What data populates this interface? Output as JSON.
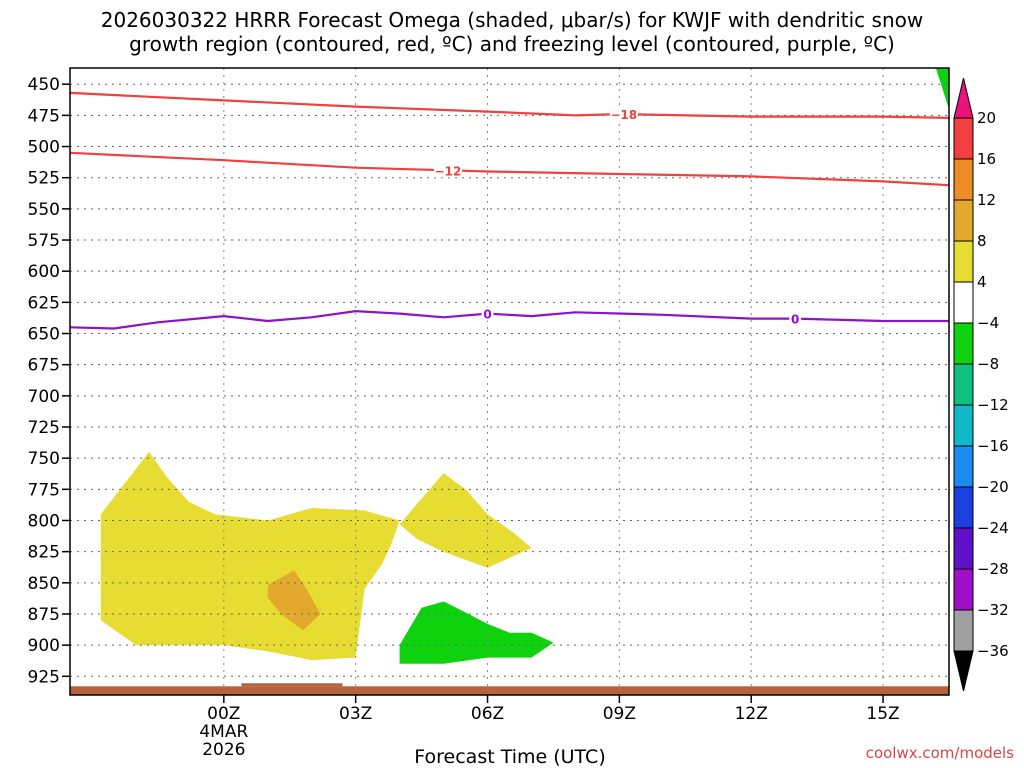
{
  "chart_data": {
    "type": "heatmap",
    "title_line1": "2026030322 HRRR Forecast Omega (shaded, μbar/s) for KWJF with dendritic snow",
    "title_line2": "growth region (contoured, red, ºC) and freezing level (contoured, purple, ºC)",
    "xlabel": "Forecast Time (UTC)",
    "credit": "coolwx.com/models",
    "xlim": [
      -3.5,
      16.5
    ],
    "ylim": [
      940,
      437
    ],
    "x_ticks": [
      {
        "value": 0,
        "label": "00Z",
        "sub1": "4MAR",
        "sub2": "2026"
      },
      {
        "value": 3,
        "label": "03Z"
      },
      {
        "value": 6,
        "label": "06Z"
      },
      {
        "value": 9,
        "label": "09Z"
      },
      {
        "value": 12,
        "label": "12Z"
      },
      {
        "value": 15,
        "label": "15Z"
      }
    ],
    "y_ticks": [
      450,
      475,
      500,
      525,
      550,
      575,
      600,
      625,
      650,
      675,
      700,
      725,
      750,
      775,
      800,
      825,
      850,
      875,
      900,
      925
    ],
    "colorbar": {
      "levels": [
        20,
        16,
        12,
        8,
        4,
        -4,
        -8,
        -12,
        -16,
        -20,
        -24,
        -28,
        -32,
        -36
      ],
      "colors": [
        "#e8137c",
        "#f04040",
        "#f08c28",
        "#e3a92d",
        "#e6dc32",
        "#ffffff",
        "#0ed20e",
        "#10c080",
        "#10b8c8",
        "#1a8cf0",
        "#1a40e0",
        "#6010c8",
        "#a010c8",
        "#a0a0a0",
        "#000000"
      ]
    },
    "contours": [
      {
        "name": "dgz-minus18",
        "label": "−18",
        "color": "#f04040",
        "label_x": 9.1,
        "x": [
          -3.5,
          0,
          3,
          6,
          8,
          9,
          12,
          15,
          16.5
        ],
        "y": [
          457,
          463,
          468,
          472,
          475,
          474,
          476,
          476,
          477
        ]
      },
      {
        "name": "dgz-minus12",
        "label": "−12",
        "color": "#f04040",
        "label_x": 5.1,
        "x": [
          -3.5,
          0,
          3,
          5,
          6,
          9,
          12,
          15,
          16.5
        ],
        "y": [
          505,
          511,
          517,
          519,
          520,
          522,
          524,
          528,
          531
        ]
      },
      {
        "name": "freezing-level-0",
        "label": "0",
        "color": "#9010c8",
        "label_x": 6.0,
        "label_x2": 13.0,
        "x": [
          -3.5,
          -2.5,
          -1.5,
          0,
          1,
          2,
          3,
          4,
          5,
          6,
          7,
          8,
          10,
          12,
          13,
          15,
          16.5
        ],
        "y": [
          645,
          646,
          641,
          636,
          640,
          637,
          632,
          634,
          637,
          634,
          636,
          633,
          635,
          638,
          638,
          640,
          640
        ]
      }
    ],
    "shaded_regions": [
      {
        "name": "omega-4to8-a",
        "value_range": "4 to 8",
        "color": "#e6dc32",
        "x": [
          -2.8,
          -1.7,
          -1.3,
          -0.8,
          -0.2,
          1.0,
          2.0,
          3.2,
          4.0,
          3.8,
          3.6,
          3.2,
          3.0,
          2.0,
          1.0,
          0.0,
          -1.0,
          -2.0,
          -2.8,
          -2.8
        ],
        "y": [
          795,
          745,
          765,
          785,
          795,
          800,
          790,
          792,
          800,
          820,
          835,
          855,
          910,
          912,
          905,
          900,
          900,
          900,
          880,
          830
        ]
      },
      {
        "name": "omega-4to8-b",
        "value_range": "4 to 8",
        "color": "#e6dc32",
        "x": [
          4.0,
          5.0,
          5.5,
          6.0,
          6.6,
          7.0,
          6.5,
          6.0,
          5.0,
          4.4
        ],
        "y": [
          803,
          762,
          775,
          795,
          810,
          822,
          830,
          838,
          825,
          815
        ]
      },
      {
        "name": "omega-8to12",
        "value_range": "8 to 12",
        "color": "#e3a92d",
        "x": [
          1.0,
          1.6,
          1.9,
          2.2,
          1.8,
          1.3,
          1.0
        ],
        "y": [
          852,
          840,
          856,
          875,
          888,
          875,
          862
        ]
      },
      {
        "name": "omega-minus4to-8",
        "value_range": "-8 to -4",
        "color": "#0ed20e",
        "x": [
          4.0,
          4.5,
          5.0,
          5.4,
          6.0,
          6.5,
          7.0,
          7.5,
          7.0,
          6.0,
          5.0,
          4.0
        ],
        "y": [
          900,
          870,
          865,
          872,
          883,
          890,
          890,
          898,
          910,
          910,
          915,
          915
        ]
      },
      {
        "name": "omega-minus4to-8-topright",
        "value_range": "-8 to -4",
        "color": "#0ed20e",
        "x": [
          16.2,
          16.5,
          16.5
        ],
        "y": [
          437,
          437,
          470
        ]
      }
    ],
    "ground": {
      "name": "terrain",
      "color": "#b4643c",
      "top_pressure": 933
    }
  }
}
